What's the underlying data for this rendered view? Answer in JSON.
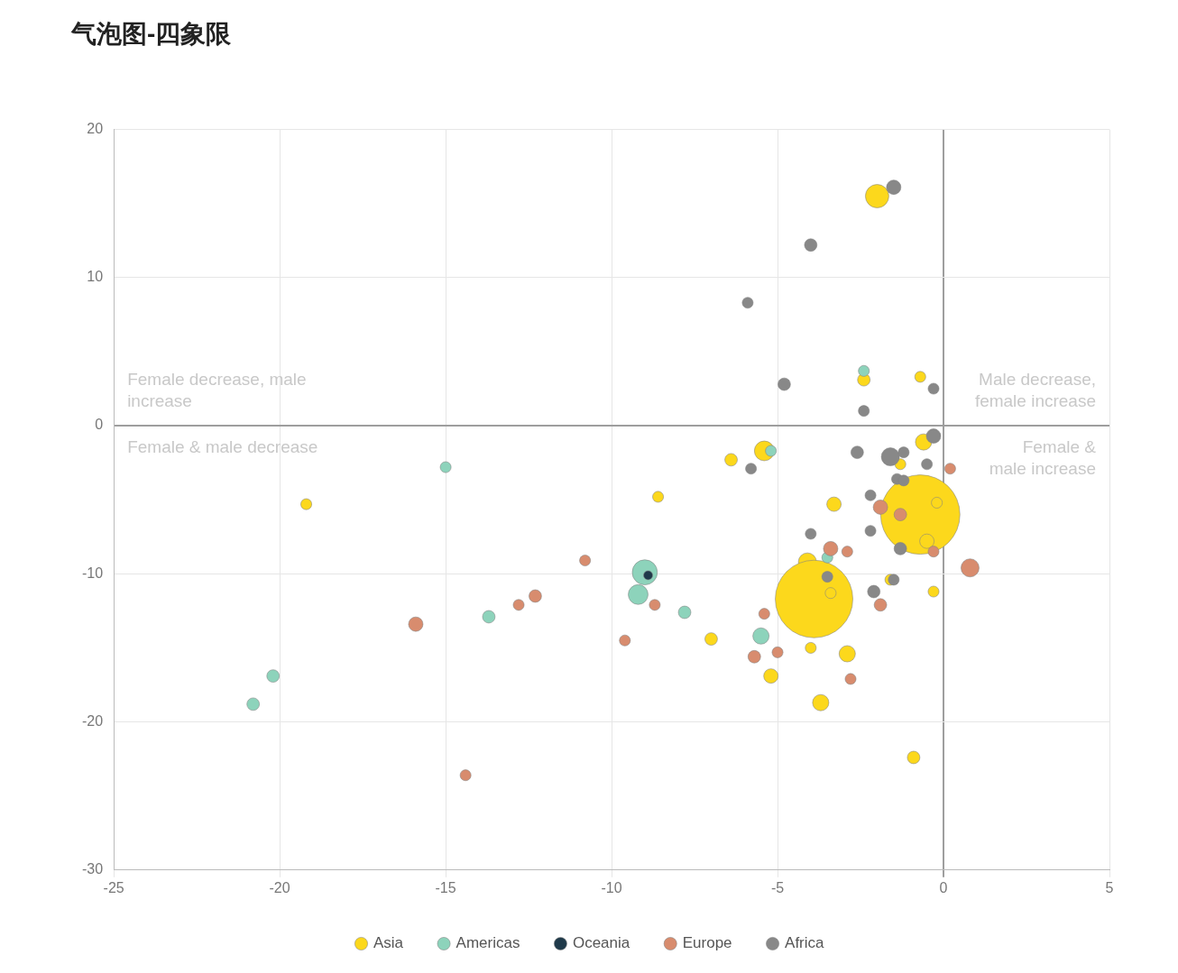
{
  "chart_data": {
    "type": "bubble",
    "title": "气泡图-四象限",
    "xlim": [
      -25,
      5
    ],
    "xticks": [
      -25,
      -20,
      -15,
      -10,
      -5,
      0,
      5
    ],
    "ylim": [
      -30,
      20
    ],
    "yticks": [
      -30,
      -20,
      -10,
      0,
      10,
      20
    ],
    "grid": true,
    "legend": "bottom",
    "marker": "circle",
    "annotations": [
      "Female decrease, male increase",
      "Male decrease, female increase",
      "Female & male decrease",
      "Female & male increase"
    ],
    "series": [
      {
        "name": "Asia",
        "color": "#fcd81c",
        "x": [
          -2.0,
          -0.7,
          -2.4,
          -5.4,
          -6.4,
          -0.6,
          -1.3,
          -0.7,
          -0.2,
          -3.3,
          -0.5,
          -8.6,
          -19.2,
          -4.1,
          -3.9,
          -3.4,
          -1.6,
          -0.3,
          -7.0,
          -4.0,
          -2.9,
          -5.2,
          -3.7,
          -0.9
        ],
        "values": [
          15.5,
          3.3,
          3.1,
          -1.7,
          -2.3,
          -1.1,
          -2.6,
          -6.0,
          -5.2,
          -5.3,
          -7.8,
          -4.8,
          -5.3,
          -9.2,
          -11.7,
          -11.3,
          -10.4,
          -11.2,
          -14.4,
          -15.0,
          -15.4,
          -16.9,
          -18.7,
          -22.4
        ],
        "sizes": [
          0.087,
          0.019,
          0.025,
          0.062,
          0.025,
          0.042,
          0.019,
          1,
          0.019,
          0.033,
          0.033,
          0.019,
          0.019,
          0.052,
          0.955,
          0.019,
          0.019,
          0.019,
          0.025,
          0.019,
          0.042,
          0.033,
          0.042,
          0.025
        ]
      },
      {
        "name": "Americas",
        "color": "#8dd3bb",
        "x": [
          -2.4,
          -5.2,
          -15.0,
          -9.0,
          -9.2,
          -3.5,
          -7.8,
          -13.7,
          -5.5,
          -20.2,
          -20.8
        ],
        "values": [
          3.7,
          -1.7,
          -2.8,
          -9.9,
          -11.4,
          -8.9,
          -12.6,
          -12.9,
          -14.2,
          -16.9,
          -18.8
        ],
        "sizes": [
          0.019,
          0.019,
          0.019,
          0.1,
          0.062,
          0.019,
          0.025,
          0.025,
          0.042,
          0.025,
          0.025
        ]
      },
      {
        "name": "Oceania",
        "color": "#1f3a4a",
        "x": [
          -8.9
        ],
        "values": [
          -10.1
        ],
        "sizes": [
          0.013
        ]
      },
      {
        "name": "Europe",
        "color": "#d88c6e",
        "x": [
          0.2,
          -1.9,
          -1.3,
          -3.4,
          -2.9,
          -0.3,
          0.8,
          -10.8,
          -12.3,
          -12.8,
          -8.7,
          -1.9,
          -5.4,
          -15.9,
          -9.6,
          -5.0,
          -5.7,
          -2.8,
          -14.4
        ],
        "values": [
          -2.9,
          -5.5,
          -6.0,
          -8.3,
          -8.5,
          -8.5,
          -9.6,
          -9.1,
          -11.5,
          -12.1,
          -12.1,
          -12.1,
          -12.7,
          -13.4,
          -14.5,
          -15.3,
          -15.6,
          -17.1,
          -23.6
        ],
        "sizes": [
          0.019,
          0.033,
          0.025,
          0.033,
          0.019,
          0.019,
          0.052,
          0.019,
          0.025,
          0.019,
          0.019,
          0.025,
          0.019,
          0.033,
          0.019,
          0.019,
          0.025,
          0.019,
          0.019
        ]
      },
      {
        "name": "Africa",
        "color": "#888888",
        "x": [
          -1.5,
          -4.0,
          -5.9,
          -4.8,
          -0.3,
          -2.4,
          -0.3,
          -2.6,
          -1.6,
          -1.2,
          -0.5,
          -5.8,
          -1.4,
          -1.2,
          -2.2,
          -2.2,
          -4.0,
          -1.3,
          -3.5,
          -1.5,
          -2.1
        ],
        "values": [
          16.1,
          12.2,
          8.3,
          2.8,
          2.5,
          1.0,
          -0.7,
          -1.8,
          -2.1,
          -1.8,
          -2.6,
          -2.9,
          -3.6,
          -3.7,
          -4.7,
          -7.1,
          -7.3,
          -8.3,
          -10.2,
          -10.4,
          -11.2
        ],
        "sizes": [
          0.033,
          0.025,
          0.019,
          0.025,
          0.019,
          0.019,
          0.033,
          0.025,
          0.052,
          0.019,
          0.019,
          0.019,
          0.019,
          0.019,
          0.019,
          0.019,
          0.019,
          0.025,
          0.019,
          0.019,
          0.025
        ]
      }
    ]
  }
}
